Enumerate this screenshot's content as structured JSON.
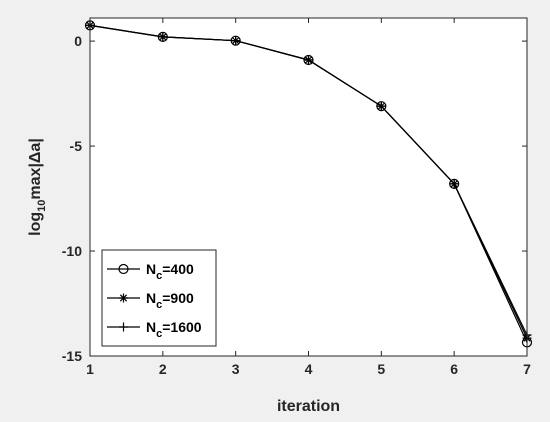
{
  "chart_data": {
    "type": "line",
    "xlabel": "iteration",
    "ylabel": {
      "prefix": "log",
      "subscript": "10",
      "suffix": "max|Δa|"
    },
    "xlim": [
      1,
      7
    ],
    "ylim": [
      -15,
      1.1
    ],
    "xticks": [
      "1",
      "2",
      "3",
      "4",
      "5",
      "6",
      "7"
    ],
    "yticks": [
      {
        "value": 0,
        "label": "0"
      },
      {
        "value": -5,
        "label": "-5"
      },
      {
        "value": -10,
        "label": "-10"
      },
      {
        "value": -15,
        "label": "-15"
      }
    ],
    "grid": false,
    "legend_position": "bottom-left",
    "x": [
      1,
      2,
      3,
      4,
      5,
      6,
      7
    ],
    "series": [
      {
        "name": {
          "base": "N",
          "sub": "c",
          "rest": "=400"
        },
        "marker": "circle",
        "values": [
          0.75,
          0.2,
          0.02,
          -0.9,
          -3.1,
          -6.8,
          -14.35
        ]
      },
      {
        "name": {
          "base": "N",
          "sub": "c",
          "rest": "=900"
        },
        "marker": "asterisk",
        "values": [
          0.75,
          0.2,
          0.02,
          -0.9,
          -3.1,
          -6.8,
          -14.15
        ]
      },
      {
        "name": {
          "base": "N",
          "sub": "c",
          "rest": "=1600"
        },
        "marker": "plus",
        "values": [
          0.75,
          0.2,
          0.02,
          -0.9,
          -3.1,
          -6.8,
          -14.0
        ]
      }
    ],
    "line_color": "#000000"
  }
}
